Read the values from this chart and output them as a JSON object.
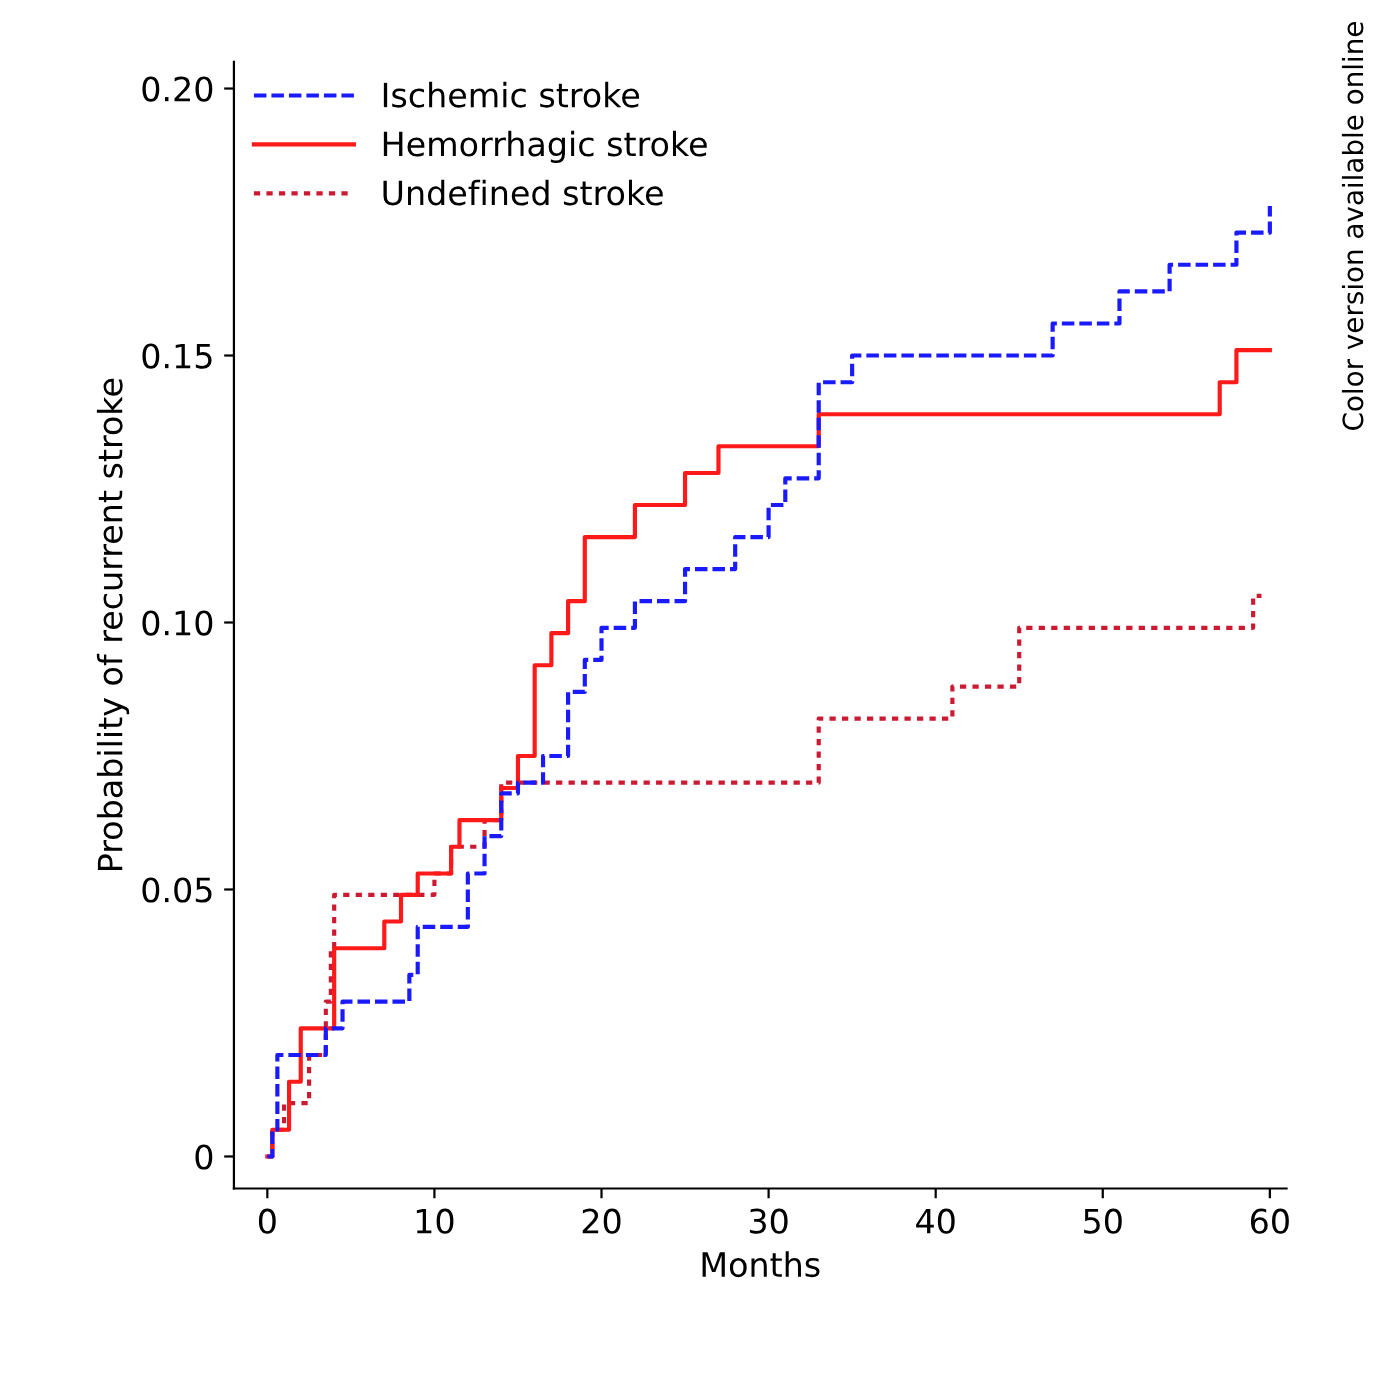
{
  "chart_data": {
    "type": "step",
    "xlabel": "Months",
    "ylabel": "Probability of recurrent stroke",
    "xlim": [
      -2,
      61
    ],
    "ylim": [
      -0.006,
      0.205
    ],
    "xticks": [
      0,
      10,
      20,
      30,
      40,
      50,
      60
    ],
    "yticks": [
      {
        "value": 0,
        "label": "0"
      },
      {
        "value": 0.05,
        "label": "0.05"
      },
      {
        "value": 0.1,
        "label": "0.10"
      },
      {
        "value": 0.15,
        "label": "0.15"
      },
      {
        "value": 0.2,
        "label": "0.20"
      }
    ],
    "legend": "top left",
    "grid": false,
    "annotations": [
      "Color version available online"
    ],
    "series": [
      {
        "name": "Ischemic stroke",
        "color": "#1a1aff",
        "line_style": "dashed",
        "x": [
          0,
          0.3,
          0.6,
          3.5,
          4.5,
          8.5,
          9,
          12,
          13,
          14,
          15,
          16.5,
          18,
          19,
          20,
          22,
          25,
          28,
          30,
          31,
          33,
          35,
          47,
          51,
          54,
          58,
          60
        ],
        "values": [
          0,
          0.005,
          0.019,
          0.024,
          0.029,
          0.034,
          0.043,
          0.053,
          0.06,
          0.068,
          0.07,
          0.075,
          0.087,
          0.093,
          0.099,
          0.104,
          0.11,
          0.116,
          0.122,
          0.127,
          0.145,
          0.15,
          0.156,
          0.162,
          0.167,
          0.173,
          0.178
        ]
      },
      {
        "name": "Hemorrhagic stroke",
        "color": "#ff1a1a",
        "line_style": "solid",
        "x": [
          0,
          0.3,
          1.3,
          2,
          4,
          7,
          8,
          9,
          11,
          11.5,
          14,
          15,
          16,
          17,
          18,
          19,
          22,
          25,
          27,
          33,
          57,
          58,
          60
        ],
        "values": [
          0,
          0.005,
          0.014,
          0.024,
          0.039,
          0.044,
          0.049,
          0.053,
          0.058,
          0.063,
          0.069,
          0.075,
          0.092,
          0.098,
          0.104,
          0.116,
          0.122,
          0.128,
          0.133,
          0.139,
          0.145,
          0.151,
          0.151
        ]
      },
      {
        "name": "Undefined stroke",
        "color": "#cc1a33",
        "line_style": "dotted",
        "x": [
          0,
          0.3,
          1,
          2.5,
          3.5,
          3.8,
          4,
          10,
          11,
          13,
          14,
          33,
          41,
          45,
          59,
          59.5
        ],
        "values": [
          0,
          0.005,
          0.01,
          0.019,
          0.029,
          0.039,
          0.049,
          0.053,
          0.058,
          0.063,
          0.07,
          0.082,
          0.088,
          0.099,
          0.105,
          0.105
        ]
      }
    ]
  }
}
